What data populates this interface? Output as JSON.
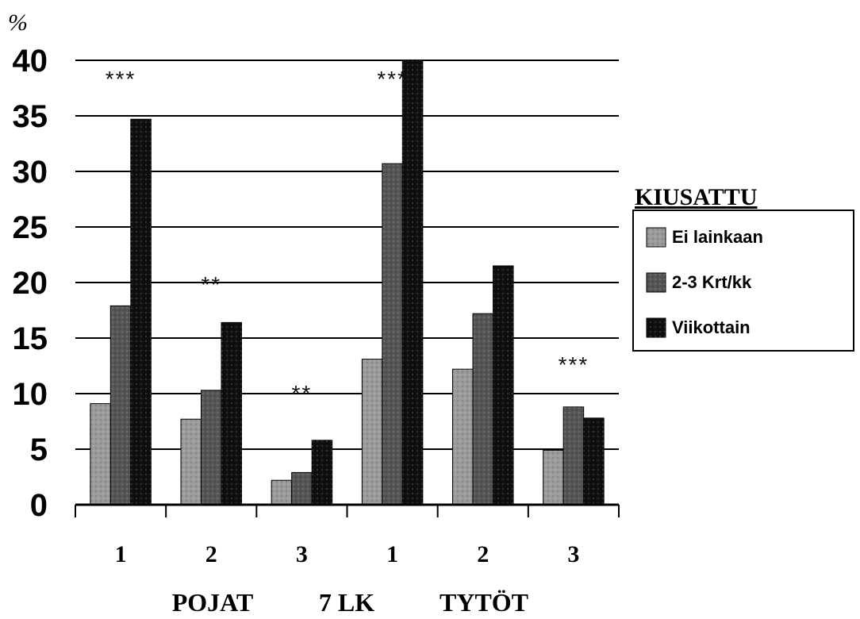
{
  "chart_data": {
    "type": "bar",
    "unit_label": "%",
    "categories": [
      "1",
      "2",
      "3",
      "1",
      "2",
      "3"
    ],
    "group_labels": [
      "POJAT",
      "7 LK",
      "TYTÖT"
    ],
    "legend_title": "KIUSATTU",
    "legend_placement": "right",
    "ylim": [
      0,
      40
    ],
    "yticks": [
      0,
      5,
      10,
      15,
      20,
      25,
      30,
      35,
      40
    ],
    "grid": true,
    "series": [
      {
        "name": "Ei lainkaan",
        "color": "#9a9a9a",
        "values": [
          9.1,
          7.7,
          2.2,
          13.1,
          12.2,
          4.9
        ]
      },
      {
        "name": "2-3 Krt/kk",
        "color": "#555555",
        "values": [
          17.9,
          10.3,
          2.9,
          30.7,
          17.2,
          8.8
        ]
      },
      {
        "name": "Viikottain",
        "color": "#0f0f0f",
        "values": [
          34.7,
          16.4,
          5.8,
          40.0,
          21.5,
          7.8
        ]
      }
    ],
    "annotations": [
      {
        "text": "***",
        "category_index": 0,
        "y": 38.5
      },
      {
        "text": "**",
        "category_index": 1,
        "y": 20.0
      },
      {
        "text": "**",
        "category_index": 2,
        "y": 10.2
      },
      {
        "text": "***",
        "category_index": 3,
        "y": 38.5
      },
      {
        "text": "***",
        "category_index": 5,
        "y": 12.8
      }
    ]
  }
}
